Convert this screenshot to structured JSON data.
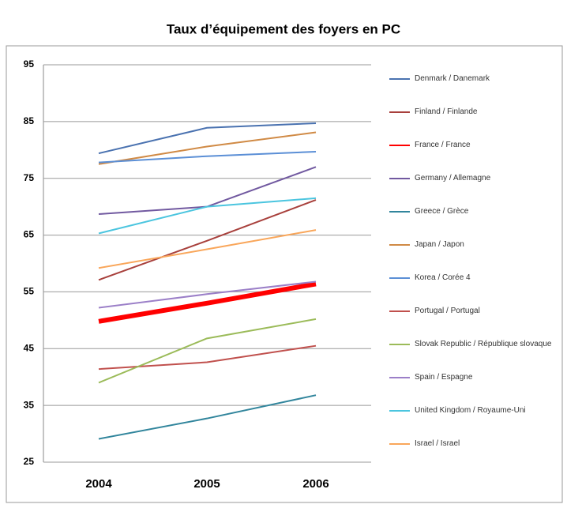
{
  "chart_data": {
    "type": "line",
    "title": "Taux d’équipement des foyers en PC",
    "categories": [
      "2004",
      "2005",
      "2006"
    ],
    "ylim": [
      25,
      95
    ],
    "yticks": [
      25,
      35,
      45,
      55,
      65,
      75,
      85,
      95
    ],
    "grid": true,
    "legend": "right",
    "series": [
      {
        "name": "Denmark / Danemark",
        "color": "#4a72b0",
        "values": [
          79.4,
          83.9,
          84.7
        ]
      },
      {
        "name": "Finland / Finlande",
        "color": "#a8403c",
        "values": [
          57.1,
          64.0,
          71.2
        ]
      },
      {
        "name": "France / France",
        "color": "#ff0000",
        "values": [
          49.8,
          53.0,
          56.4
        ]
      },
      {
        "name": "Germany / Allemagne",
        "color": "#7159a0",
        "values": [
          68.7,
          70.0,
          77.0
        ]
      },
      {
        "name": "Greece / Grèce",
        "color": "#31859c",
        "values": [
          29.1,
          32.7,
          36.8
        ]
      },
      {
        "name": "Japan / Japon",
        "color": "#d08a45",
        "values": [
          77.5,
          80.6,
          83.1
        ]
      },
      {
        "name": "Korea / Corée 4",
        "color": "#5b8fd6",
        "values": [
          77.8,
          78.9,
          79.7
        ]
      },
      {
        "name": "Portugal / Portugal",
        "color": "#c0504d",
        "values": [
          41.4,
          42.6,
          45.5
        ]
      },
      {
        "name": "Slovak Republic / République slovaque",
        "color": "#9bbb59",
        "values": [
          39.0,
          46.8,
          50.2
        ]
      },
      {
        "name": "Spain / Espagne",
        "color": "#9b7fc8",
        "values": [
          52.2,
          54.6,
          56.8
        ]
      },
      {
        "name": "United Kingdom / Royaume-Uni",
        "color": "#4bc5df",
        "values": [
          65.3,
          70.0,
          71.5
        ]
      },
      {
        "name": "Israel / Israel",
        "color": "#f9a65a",
        "values": [
          59.2,
          62.5,
          65.9
        ]
      }
    ]
  }
}
